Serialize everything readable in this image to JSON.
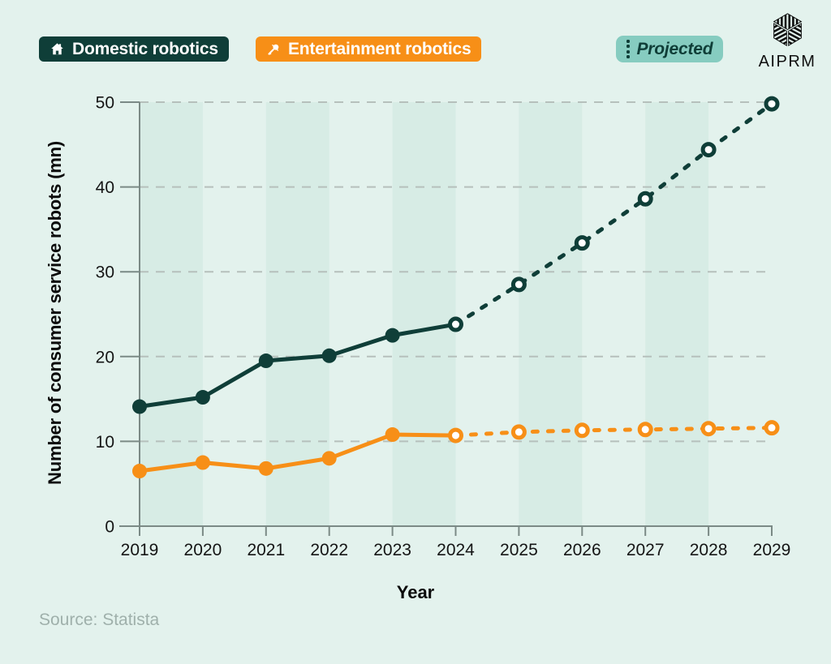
{
  "colors": {
    "background": "#e3f2ed",
    "band": "#d7ece5",
    "domestic": "#0f3e38",
    "entertainment": "#f78f17",
    "projected_badge": "#86ccc0",
    "gridline": "#b6c0bc",
    "axis": "#7b8a86",
    "text": "#151515",
    "muted": "#9fb0ab"
  },
  "legend": {
    "domestic": {
      "label": "Domestic robotics",
      "icon": "house-icon"
    },
    "entertainment": {
      "label": "Entertainment robotics",
      "icon": "microphone-icon"
    },
    "projected": {
      "label": "Projected",
      "icon": "dotted-line-icon"
    }
  },
  "branding": {
    "logo_text": "AIPRM"
  },
  "source": {
    "text": "Source: Statista"
  },
  "chart_data": {
    "type": "line",
    "title": "",
    "xlabel": "Year",
    "ylabel": "Number of consumer service robots (mn)",
    "x": [
      2019,
      2020,
      2021,
      2022,
      2023,
      2024,
      2025,
      2026,
      2027,
      2028,
      2029
    ],
    "yticks": [
      0,
      10,
      20,
      30,
      40,
      50
    ],
    "ylim": [
      0,
      50
    ],
    "grid": "horizontal-dashed",
    "background_bands": "alternating vertical year bands",
    "legend_position": "top",
    "projected_from": 2024,
    "marker_styles": {
      "actual": "filled-circle",
      "projected": "open-circle-dashed-line"
    },
    "series": [
      {
        "name": "Domestic robotics",
        "color": "#0f3e38",
        "values": [
          14.1,
          15.2,
          19.5,
          20.1,
          22.5,
          23.8,
          28.5,
          33.4,
          38.6,
          44.4,
          49.8
        ]
      },
      {
        "name": "Entertainment robotics",
        "color": "#f78f17",
        "values": [
          6.5,
          7.5,
          6.8,
          8.0,
          10.8,
          10.7,
          11.1,
          11.3,
          11.4,
          11.5,
          11.6
        ]
      }
    ]
  }
}
